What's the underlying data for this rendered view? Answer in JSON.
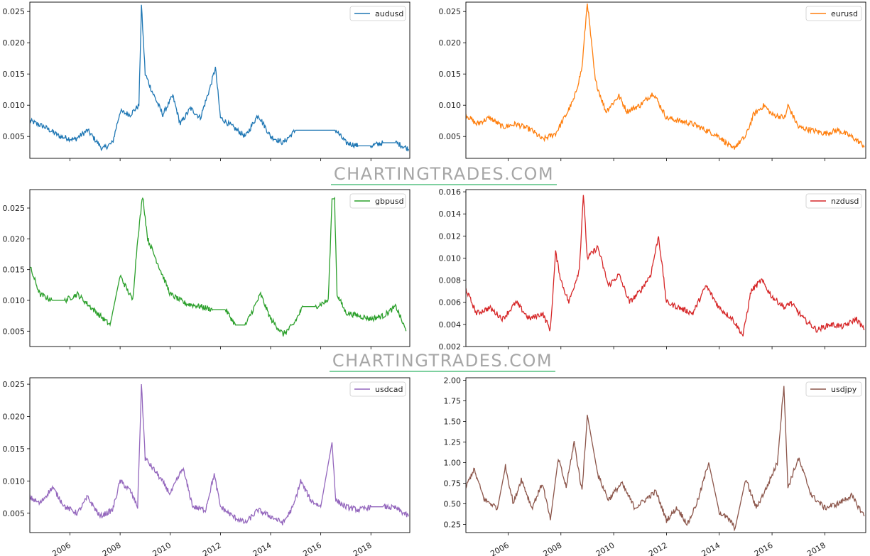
{
  "watermark": "CHARTINGTRADES.COM",
  "chart_data": [
    {
      "type": "line",
      "series": [
        {
          "name": "audusd",
          "color": "#1f77b4"
        }
      ],
      "ylim": [
        0.0015,
        0.0265
      ],
      "yticks": [
        0.005,
        0.01,
        0.015,
        0.02,
        0.025
      ],
      "ytick_labels": [
        "0.005",
        "0.010",
        "0.015",
        "0.020",
        "0.025"
      ],
      "x": [
        2004.4,
        2005.0,
        2005.6,
        2006.2,
        2006.7,
        2007.3,
        2007.7,
        2008.0,
        2008.4,
        2008.75,
        2008.85,
        2009.0,
        2009.3,
        2009.7,
        2010.1,
        2010.4,
        2010.8,
        2011.2,
        2011.6,
        2011.8,
        2012.0,
        2012.5,
        2013.0,
        2013.5,
        2014.0,
        2014.5,
        2015.0,
        2015.5,
        2016.4,
        2016.6,
        2017.0,
        2017.5,
        2018.0,
        2018.5,
        2019.0,
        2019.5
      ],
      "y": [
        0.0075,
        0.0065,
        0.005,
        0.0045,
        0.006,
        0.003,
        0.004,
        0.009,
        0.0085,
        0.01,
        0.026,
        0.015,
        0.012,
        0.0085,
        0.0115,
        0.007,
        0.0095,
        0.008,
        0.013,
        0.016,
        0.008,
        0.0065,
        0.005,
        0.0085,
        0.005,
        0.004,
        0.006,
        0.006,
        0.006,
        0.006,
        0.004,
        0.0035,
        0.0035,
        0.004,
        0.004,
        0.003
      ]
    },
    {
      "type": "line",
      "series": [
        {
          "name": "eurusd",
          "color": "#ff7f0e"
        }
      ],
      "ylim": [
        0.0015,
        0.0265
      ],
      "yticks": [
        0.005,
        0.01,
        0.015,
        0.02,
        0.025
      ],
      "ytick_labels": [
        "0.005",
        "0.010",
        "0.015",
        "0.020",
        "0.025"
      ],
      "x": [
        2004.4,
        2004.8,
        2005.3,
        2005.8,
        2006.3,
        2006.9,
        2007.3,
        2007.8,
        2008.2,
        2008.5,
        2008.8,
        2009.0,
        2009.3,
        2009.7,
        2010.2,
        2010.5,
        2011.0,
        2011.5,
        2012.0,
        2012.5,
        2013.0,
        2013.5,
        2014.0,
        2014.5,
        2015.0,
        2015.3,
        2015.7,
        2016.0,
        2016.5,
        2016.6,
        2017.0,
        2017.5,
        2018.0,
        2018.5,
        2019.0,
        2019.5
      ],
      "y": [
        0.0085,
        0.007,
        0.008,
        0.0065,
        0.007,
        0.006,
        0.0045,
        0.0055,
        0.0085,
        0.011,
        0.016,
        0.0265,
        0.014,
        0.009,
        0.0115,
        0.009,
        0.01,
        0.012,
        0.008,
        0.0075,
        0.007,
        0.006,
        0.005,
        0.003,
        0.005,
        0.0085,
        0.01,
        0.0085,
        0.008,
        0.01,
        0.0065,
        0.006,
        0.0055,
        0.006,
        0.005,
        0.0035
      ]
    },
    {
      "type": "line",
      "series": [
        {
          "name": "gbpusd",
          "color": "#2ca02c"
        }
      ],
      "ylim": [
        0.0025,
        0.028
      ],
      "yticks": [
        0.005,
        0.01,
        0.015,
        0.02,
        0.025
      ],
      "ytick_labels": [
        "0.005",
        "0.010",
        "0.015",
        "0.020",
        "0.025"
      ],
      "x": [
        2004.4,
        2004.8,
        2005.3,
        2005.8,
        2006.3,
        2006.8,
        2007.2,
        2007.6,
        2008.0,
        2008.5,
        2008.7,
        2008.9,
        2009.1,
        2009.6,
        2010.0,
        2010.6,
        2011.2,
        2011.7,
        2012.2,
        2012.6,
        2013.0,
        2013.6,
        2014.0,
        2014.5,
        2014.9,
        2015.3,
        2015.8,
        2016.3,
        2016.45,
        2016.55,
        2016.65,
        2017.0,
        2017.5,
        2018.0,
        2018.5,
        2019.0,
        2019.4
      ],
      "y": [
        0.0155,
        0.011,
        0.01,
        0.01,
        0.011,
        0.009,
        0.0075,
        0.006,
        0.014,
        0.01,
        0.02,
        0.027,
        0.02,
        0.015,
        0.011,
        0.0095,
        0.009,
        0.0085,
        0.0085,
        0.006,
        0.006,
        0.011,
        0.007,
        0.0045,
        0.006,
        0.009,
        0.009,
        0.01,
        0.0265,
        0.0265,
        0.011,
        0.008,
        0.0075,
        0.007,
        0.0075,
        0.009,
        0.005
      ]
    },
    {
      "type": "line",
      "series": [
        {
          "name": "nzdusd",
          "color": "#d62728"
        }
      ],
      "ylim": [
        0.002,
        0.0162
      ],
      "yticks": [
        0.002,
        0.004,
        0.006,
        0.008,
        0.01,
        0.012,
        0.014,
        0.016
      ],
      "ytick_labels": [
        "0.002",
        "0.004",
        "0.006",
        "0.008",
        "0.010",
        "0.012",
        "0.014",
        "0.016"
      ],
      "x": [
        2004.4,
        2004.8,
        2005.3,
        2005.8,
        2006.3,
        2006.8,
        2007.3,
        2007.6,
        2007.8,
        2008.0,
        2008.3,
        2008.7,
        2008.85,
        2009.0,
        2009.4,
        2009.8,
        2010.2,
        2010.6,
        2011.0,
        2011.4,
        2011.7,
        2012.0,
        2012.5,
        2013.0,
        2013.5,
        2014.0,
        2014.5,
        2014.9,
        2015.2,
        2015.6,
        2016.0,
        2016.5,
        2016.7,
        2017.2,
        2017.7,
        2018.2,
        2018.7,
        2019.2,
        2019.5
      ],
      "y": [
        0.0072,
        0.005,
        0.0055,
        0.0045,
        0.006,
        0.0045,
        0.005,
        0.0035,
        0.0105,
        0.008,
        0.006,
        0.009,
        0.0158,
        0.01,
        0.011,
        0.0075,
        0.0085,
        0.006,
        0.007,
        0.0085,
        0.012,
        0.006,
        0.0055,
        0.005,
        0.0075,
        0.0055,
        0.0045,
        0.003,
        0.007,
        0.008,
        0.0065,
        0.0055,
        0.006,
        0.0045,
        0.0035,
        0.004,
        0.0038,
        0.0045,
        0.0035
      ]
    },
    {
      "type": "line",
      "series": [
        {
          "name": "usdcad",
          "color": "#9467bd"
        }
      ],
      "ylim": [
        0.002,
        0.026
      ],
      "yticks": [
        0.005,
        0.01,
        0.015,
        0.02,
        0.025
      ],
      "ytick_labels": [
        "0.005",
        "0.010",
        "0.015",
        "0.020",
        "0.025"
      ],
      "x": [
        2004.4,
        2004.8,
        2005.3,
        2005.8,
        2006.3,
        2006.7,
        2007.2,
        2007.7,
        2008.0,
        2008.4,
        2008.7,
        2008.85,
        2009.0,
        2009.5,
        2010.0,
        2010.5,
        2010.9,
        2011.4,
        2011.75,
        2012.0,
        2012.5,
        2013.0,
        2013.5,
        2014.0,
        2014.5,
        2014.9,
        2015.2,
        2015.6,
        2016.0,
        2016.45,
        2016.6,
        2017.0,
        2017.5,
        2018.0,
        2018.5,
        2019.0,
        2019.5
      ],
      "y": [
        0.0075,
        0.0065,
        0.009,
        0.006,
        0.005,
        0.0075,
        0.0045,
        0.0055,
        0.01,
        0.0085,
        0.006,
        0.025,
        0.0135,
        0.011,
        0.008,
        0.012,
        0.006,
        0.0055,
        0.011,
        0.006,
        0.0045,
        0.0035,
        0.0055,
        0.0045,
        0.0035,
        0.006,
        0.01,
        0.007,
        0.006,
        0.016,
        0.007,
        0.006,
        0.0055,
        0.006,
        0.006,
        0.0058,
        0.0045
      ]
    },
    {
      "type": "line",
      "series": [
        {
          "name": "usdjpy",
          "color": "#8c564b"
        }
      ],
      "ylim": [
        0.15,
        2.03
      ],
      "yticks": [
        0.25,
        0.5,
        0.75,
        1.0,
        1.25,
        1.5,
        1.75,
        2.0
      ],
      "ytick_labels": [
        "0.25",
        "0.50",
        "0.75",
        "1.00",
        "1.25",
        "1.50",
        "1.75",
        "2.00"
      ],
      "x": [
        2004.4,
        2004.7,
        2005.1,
        2005.6,
        2005.9,
        2006.2,
        2006.5,
        2006.9,
        2007.3,
        2007.6,
        2007.9,
        2008.2,
        2008.5,
        2008.8,
        2009.0,
        2009.4,
        2009.8,
        2010.3,
        2010.8,
        2011.2,
        2011.6,
        2012.0,
        2012.4,
        2012.8,
        2013.2,
        2013.6,
        2014.0,
        2014.4,
        2014.6,
        2015.0,
        2015.4,
        2015.8,
        2016.2,
        2016.45,
        2016.6,
        2017.0,
        2017.5,
        2018.0,
        2018.5,
        2019.0,
        2019.5
      ],
      "y": [
        0.7,
        0.92,
        0.55,
        0.45,
        0.95,
        0.5,
        0.8,
        0.45,
        0.75,
        0.3,
        1.05,
        0.7,
        1.25,
        0.65,
        1.58,
        0.85,
        0.55,
        0.75,
        0.45,
        0.55,
        0.65,
        0.3,
        0.45,
        0.25,
        0.55,
        1.0,
        0.4,
        0.3,
        0.2,
        0.8,
        0.45,
        0.7,
        1.0,
        1.95,
        0.7,
        1.05,
        0.6,
        0.45,
        0.5,
        0.6,
        0.35
      ]
    }
  ],
  "xaxis": {
    "range": [
      2004.4,
      2019.55
    ],
    "ticks": [
      2006,
      2008,
      2010,
      2012,
      2014,
      2016,
      2018
    ],
    "tick_labels": [
      "2006",
      "2008",
      "2010",
      "2012",
      "2014",
      "2016",
      "2018"
    ]
  }
}
